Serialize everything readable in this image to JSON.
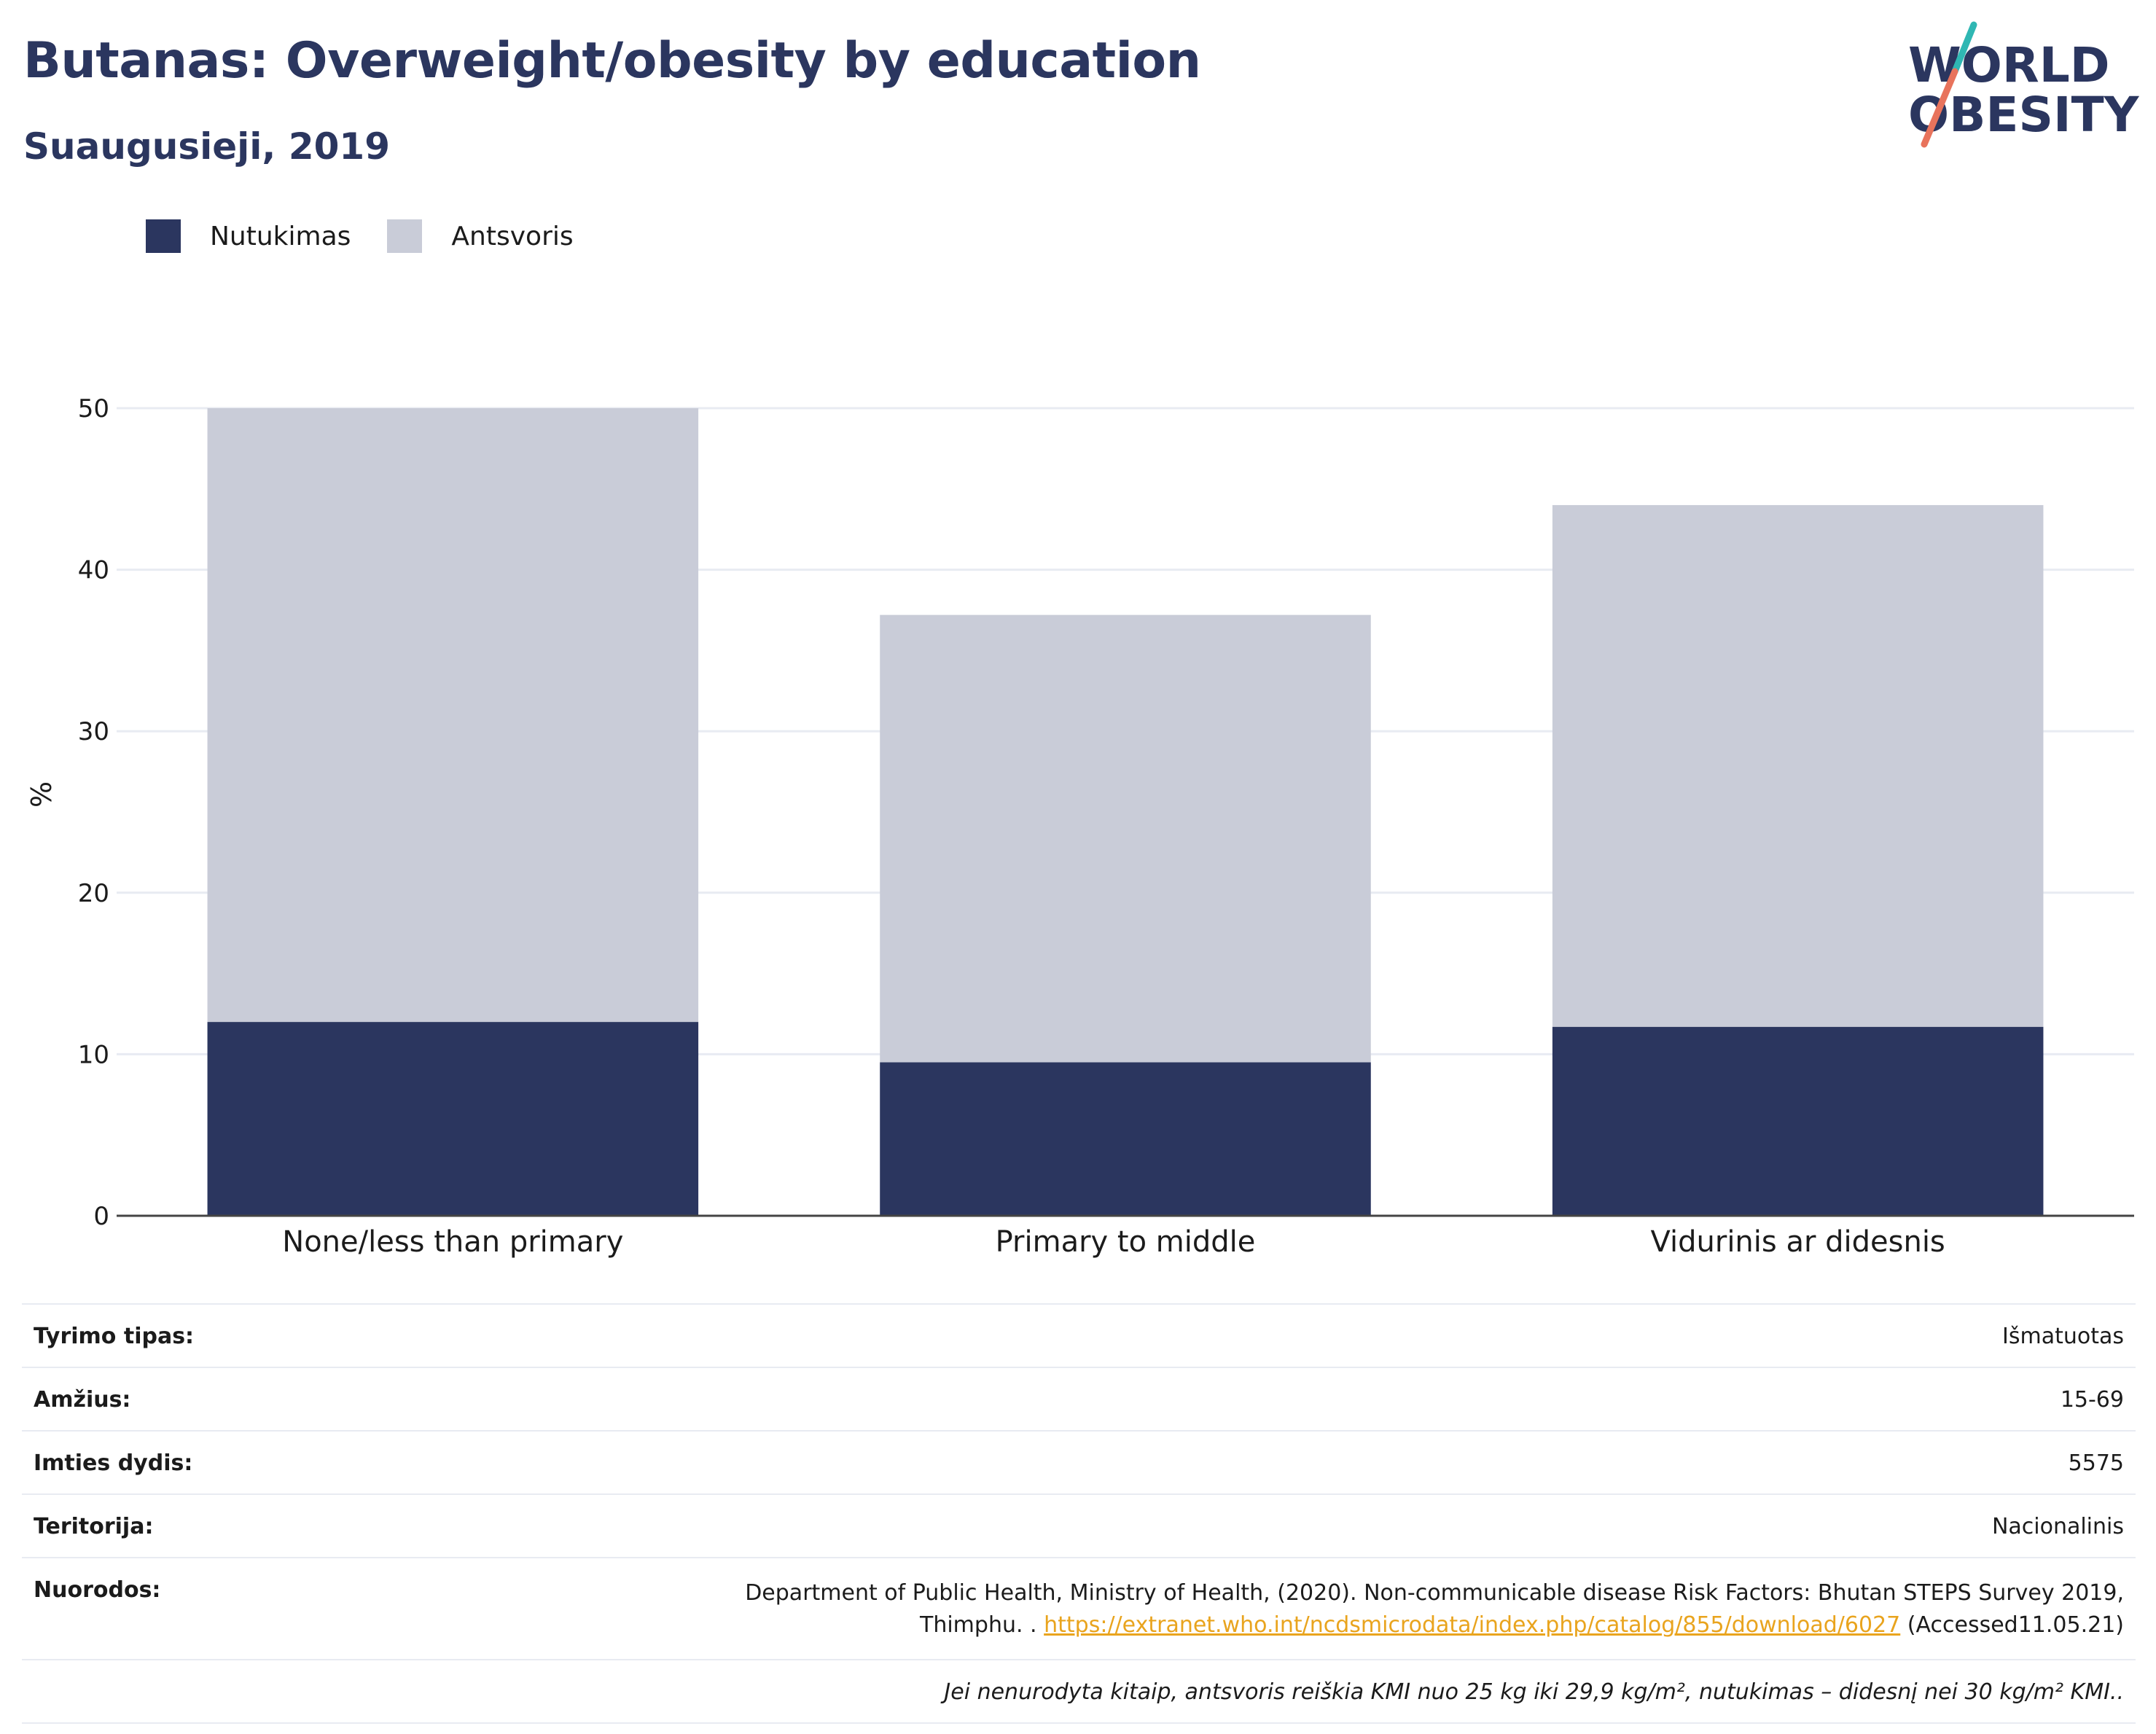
{
  "title": "Butanas: Overweight/obesity by education",
  "subtitle": "Suaugusieji, 2019",
  "logo": {
    "line1": "WORLD",
    "line2": "OBESITY",
    "accent_colors": [
      "#2fb7b3",
      "#e8735c"
    ]
  },
  "colors": {
    "obesity": "#2b365f",
    "overweight": "#c9ccd8",
    "text": "#1b1b1b",
    "grid": "#e8ebf2",
    "link": "#e9a41e"
  },
  "legend": [
    {
      "label": "Nutukimas",
      "color": "#2b365f"
    },
    {
      "label": "Antsvoris",
      "color": "#c9ccd8"
    }
  ],
  "chart_data": {
    "type": "bar",
    "stacked": true,
    "categories": [
      "None/less than primary",
      "Primary to middle",
      "Vidurinis ar didesnis"
    ],
    "series": [
      {
        "name": "Nutukimas",
        "values": [
          12.0,
          9.5,
          11.7
        ]
      },
      {
        "name": "Antsvoris",
        "values": [
          38.0,
          27.7,
          32.3
        ]
      }
    ],
    "ylabel": "%",
    "ylim": [
      0,
      50
    ],
    "yticks": [
      0,
      10,
      20,
      30,
      40,
      50
    ],
    "grid": true
  },
  "info": {
    "survey_type_label": "Tyrimo tipas:",
    "survey_type_value": "Išmatuotas",
    "age_label": "Amžius:",
    "age_value": "15-69",
    "sample_label": "Imties dydis:",
    "sample_value": "5575",
    "territory_label": "Teritorija:",
    "territory_value": "Nacionalinis",
    "refs_label": "Nuorodos:",
    "refs_line1": "Department of Public Health, Ministry of Health, (2020). Non-communicable disease Risk Factors: Bhutan STEPS Survey 2019,",
    "refs_line2_prefix": "Thimphu. .",
    "refs_link": "https://extranet.who.int/ncdsmicrodata/index.php/catalog/855/download/6027",
    "refs_suffix": "(Accessed11.05.21)",
    "note": "Jei nenurodyta kitaip, antsvoris reiškia KMI nuo 25 kg iki 29,9 kg/m², nutukimas – didesnį nei 30 kg/m² KMI.."
  }
}
